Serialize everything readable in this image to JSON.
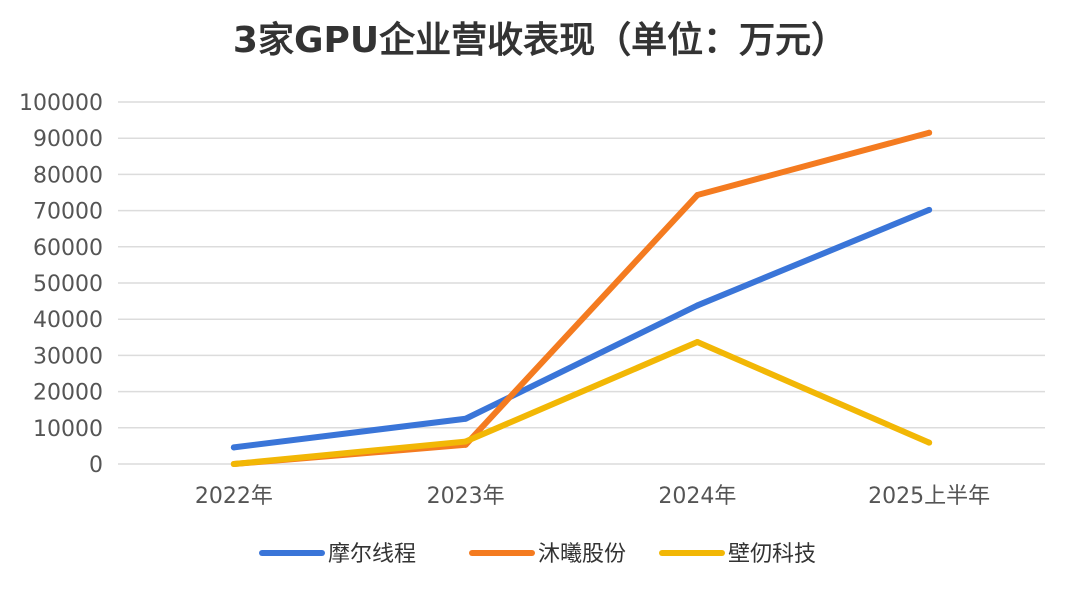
{
  "chart_data": {
    "type": "line",
    "title": "3家GPU企业营收表现（单位：万元）",
    "xlabel": "",
    "ylabel": "",
    "categories": [
      "2022年",
      "2023年",
      "2024年",
      "2025上半年"
    ],
    "ylim": [
      0,
      100000
    ],
    "yticks": [
      "0",
      "10000",
      "20000",
      "30000",
      "40000",
      "50000",
      "60000",
      "70000",
      "80000",
      "90000",
      "100000"
    ],
    "grid": true,
    "legend_position": "bottom",
    "series": [
      {
        "name": "摩尔线程",
        "color": "#3A75D8",
        "values": [
          4600,
          12500,
          43800,
          70200
        ]
      },
      {
        "name": "沐曦股份",
        "color": "#F47B20",
        "values": [
          0,
          5300,
          74300,
          91500
        ]
      },
      {
        "name": "壁仞科技",
        "color": "#F2B705",
        "values": [
          0,
          6200,
          33700,
          5900
        ]
      }
    ]
  }
}
